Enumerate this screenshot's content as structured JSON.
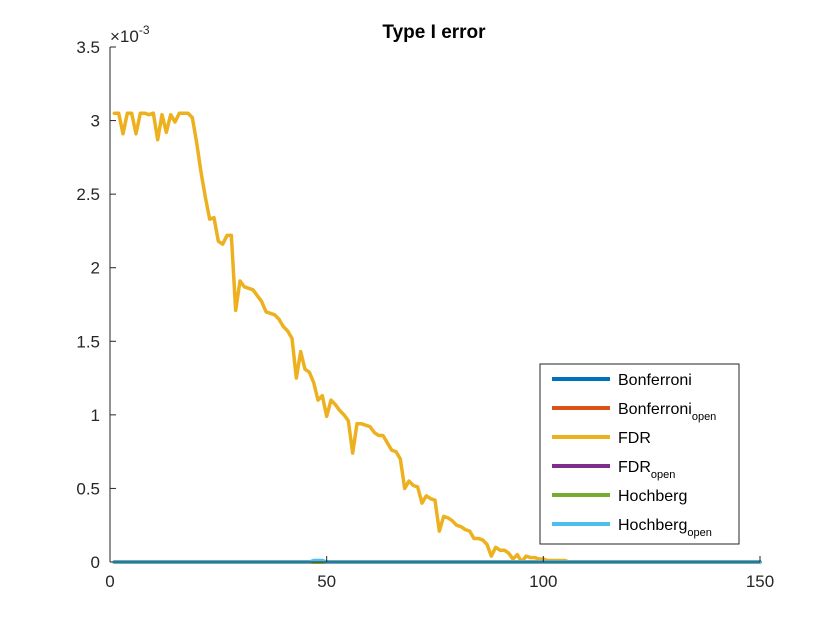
{
  "chart_data": {
    "type": "line",
    "title": "Type I error",
    "xlabel": "",
    "ylabel": "",
    "xlim": [
      0,
      150
    ],
    "ylim": [
      0,
      0.0035
    ],
    "y_exponent_label": "×10",
    "y_exponent_power": "-3",
    "x_ticks": [
      "0",
      "50",
      "100",
      "150"
    ],
    "x_tick_values": [
      0,
      50,
      100,
      150
    ],
    "y_ticks": [
      "0",
      "0.5",
      "1",
      "1.5",
      "2",
      "2.5",
      "3",
      "3.5"
    ],
    "y_tick_values": [
      0,
      0.0005,
      0.001,
      0.0015,
      0.002,
      0.0025,
      0.003,
      0.0035
    ],
    "grid": false,
    "legend_position": "bottom-right",
    "series": [
      {
        "name": "Bonferroni",
        "name_sub": "",
        "color": "#0072BD",
        "x": [
          1,
          150
        ],
        "y": [
          0,
          0
        ]
      },
      {
        "name": "Bonferroni",
        "name_sub": "open",
        "color": "#D95319",
        "x": [
          1,
          150
        ],
        "y": [
          0,
          0
        ]
      },
      {
        "name": "FDR",
        "name_sub": "",
        "color": "#EDB120",
        "x": [
          1,
          2,
          3,
          4,
          5,
          6,
          7,
          8,
          9,
          10,
          11,
          12,
          13,
          14,
          15,
          16,
          17,
          18,
          19,
          20,
          21,
          22,
          23,
          24,
          25,
          26,
          27,
          28,
          29,
          30,
          31,
          32,
          33,
          34,
          35,
          36,
          37,
          38,
          39,
          40,
          41,
          42,
          43,
          44,
          45,
          46,
          47,
          48,
          49,
          50,
          51,
          52,
          53,
          54,
          55,
          56,
          57,
          58,
          59,
          60,
          61,
          62,
          63,
          64,
          65,
          66,
          67,
          68,
          69,
          70,
          71,
          72,
          73,
          74,
          75,
          76,
          77,
          78,
          79,
          80,
          81,
          82,
          83,
          84,
          85,
          86,
          87,
          88,
          89,
          90,
          91,
          92,
          93,
          94,
          95,
          96,
          97,
          98,
          99,
          100,
          101,
          102,
          103,
          104,
          105,
          106,
          107,
          108,
          109,
          110,
          111,
          112,
          113,
          114,
          115,
          150
        ],
        "y": [
          0.00305,
          0.00305,
          0.00291,
          0.00305,
          0.00305,
          0.00291,
          0.00305,
          0.00305,
          0.00304,
          0.00305,
          0.00287,
          0.00304,
          0.00292,
          0.00304,
          0.00299,
          0.00305,
          0.00305,
          0.00305,
          0.00302,
          0.00285,
          0.00265,
          0.00248,
          0.00233,
          0.00234,
          0.00218,
          0.00216,
          0.00222,
          0.00222,
          0.00171,
          0.00191,
          0.00187,
          0.00186,
          0.00185,
          0.00181,
          0.00177,
          0.0017,
          0.00169,
          0.00168,
          0.00165,
          0.0016,
          0.00157,
          0.00152,
          0.00125,
          0.00143,
          0.00131,
          0.00129,
          0.00122,
          0.0011,
          0.00113,
          0.00099,
          0.0011,
          0.00107,
          0.00103,
          0.001,
          0.00096,
          0.00074,
          0.00094,
          0.00094,
          0.00093,
          0.00092,
          0.00088,
          0.00086,
          0.00086,
          0.00081,
          0.00076,
          0.00075,
          0.0007,
          0.0005,
          0.00055,
          0.00052,
          0.00051,
          0.0004,
          0.00045,
          0.00043,
          0.00042,
          0.00021,
          0.00031,
          0.0003,
          0.00028,
          0.00025,
          0.00024,
          0.00022,
          0.00021,
          0.00016,
          0.00016,
          0.00015,
          0.00012,
          4e-05,
          0.0001,
          8e-05,
          8e-05,
          6e-05,
          2e-05,
          5e-05,
          0.0,
          4e-05,
          3e-05,
          3e-05,
          2e-05,
          2e-05,
          1e-05,
          1e-05,
          1e-05,
          1e-05,
          1e-05,
          0.0,
          0.0,
          0.0,
          0.0,
          0.0,
          0.0,
          0.0,
          0.0,
          0.0,
          0.0,
          0
        ]
      },
      {
        "name": "FDR",
        "name_sub": "open",
        "color": "#7E2F8E",
        "x": [
          1,
          150
        ],
        "y": [
          0,
          0
        ]
      },
      {
        "name": "Hochberg",
        "name_sub": "",
        "color": "#77AC30",
        "x": [
          1,
          150
        ],
        "y": [
          0,
          0
        ]
      },
      {
        "name": "Hochberg",
        "name_sub": "open",
        "color": "#4DBEEE",
        "x": [
          1,
          46,
          47,
          48,
          49,
          50,
          150
        ],
        "y": [
          0,
          0,
          1e-05,
          1e-05,
          1e-05,
          0,
          0
        ]
      }
    ]
  }
}
